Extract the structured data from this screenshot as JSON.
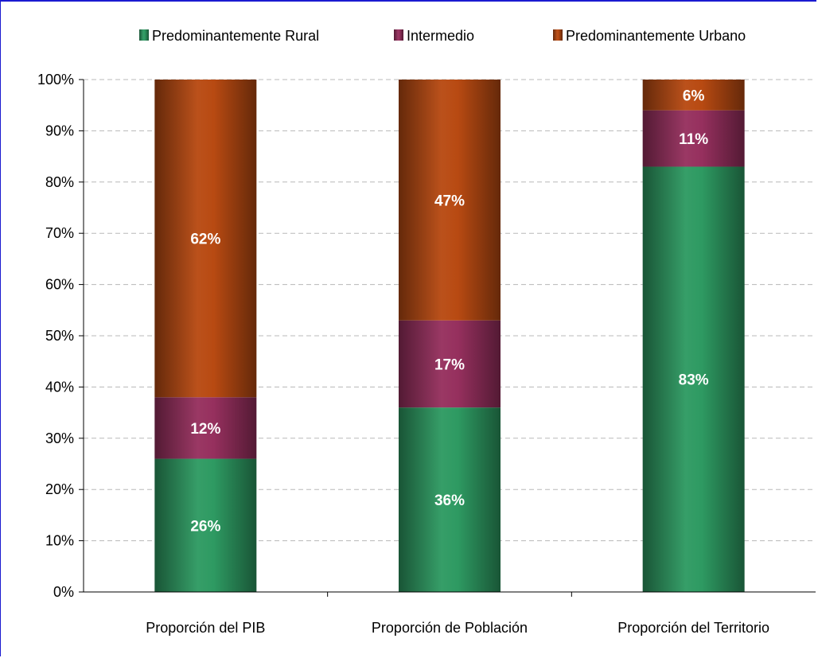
{
  "chart_data": {
    "type": "bar",
    "stacked": true,
    "categories": [
      "Proporción del PIB",
      "Proporción de Población",
      "Proporción del Territorio"
    ],
    "series": [
      {
        "name": "Predominantemente Rural",
        "values": [
          26,
          36,
          83
        ],
        "labels": [
          "26%",
          "36%",
          "83%"
        ],
        "color": "#2e9a62"
      },
      {
        "name": "Intermedio",
        "values": [
          12,
          17,
          11
        ],
        "labels": [
          "12%",
          "17%",
          "11%"
        ],
        "color": "#96305e"
      },
      {
        "name": "Predominantemente Urbano",
        "values": [
          62,
          47,
          6
        ],
        "labels": [
          "62%",
          "47%",
          "6%"
        ],
        "color": "#b84a12"
      }
    ],
    "y_ticks": [
      "0%",
      "10%",
      "20%",
      "30%",
      "40%",
      "50%",
      "60%",
      "70%",
      "80%",
      "90%",
      "100%"
    ],
    "ylim": [
      0,
      100
    ],
    "grid": "horizontal dashed",
    "legend_position": "top"
  }
}
